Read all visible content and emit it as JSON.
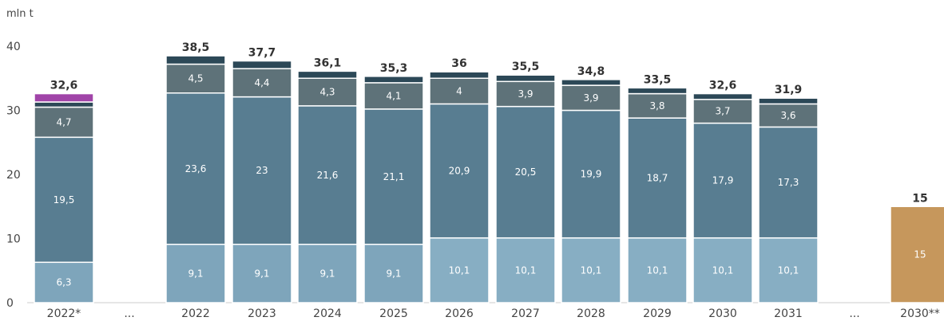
{
  "chart_data": {
    "type": "bar",
    "stacked": true,
    "unit_label": "mln t",
    "title": "",
    "xlabel": "",
    "ylabel": "",
    "ylim": [
      0,
      40
    ],
    "y_ticks": [
      0,
      10,
      20,
      30,
      40
    ],
    "grid": false,
    "categories": [
      "2022*",
      "...",
      "2022",
      "2023",
      "2024",
      "2025",
      "2026",
      "2027",
      "2028",
      "2029",
      "2030",
      "2031",
      "...",
      "2030**"
    ],
    "colors": {
      "s1": "#7ea5bb",
      "s1_alt": "#87aec3",
      "s2": "#587d91",
      "s3": "#5e7279",
      "s4": "#3f5866",
      "s5": "#2c4857",
      "highlight": "#a044a8",
      "target": "#c6975c"
    },
    "bars": [
      {
        "category": "2022*",
        "total": 32.6,
        "total_label": "32,6",
        "segments": [
          {
            "value": 6.3,
            "label": "6,3",
            "color": "#7ea5bb"
          },
          {
            "value": 19.5,
            "label": "19,5",
            "color": "#587d91"
          },
          {
            "value": 4.7,
            "label": "4,7",
            "color": "#5e7279"
          },
          {
            "value": 0.8,
            "label": "",
            "color": "#2c4857"
          },
          {
            "value": 1.3,
            "label": "",
            "color": "#a044a8"
          }
        ]
      },
      {
        "category": "2022",
        "total": 38.5,
        "total_label": "38,5",
        "segments": [
          {
            "value": 9.1,
            "label": "9,1",
            "color": "#7ea5bb"
          },
          {
            "value": 23.6,
            "label": "23,6",
            "color": "#587d91"
          },
          {
            "value": 4.5,
            "label": "4,5",
            "color": "#5e7279"
          },
          {
            "value": 1.3,
            "label": "",
            "color": "#2c4857"
          }
        ]
      },
      {
        "category": "2023",
        "total": 37.7,
        "total_label": "37,7",
        "segments": [
          {
            "value": 9.1,
            "label": "9,1",
            "color": "#7ea5bb"
          },
          {
            "value": 23,
            "label": "23",
            "color": "#587d91"
          },
          {
            "value": 4.4,
            "label": "4,4",
            "color": "#5e7279"
          },
          {
            "value": 1.2,
            "label": "",
            "color": "#2c4857"
          }
        ]
      },
      {
        "category": "2024",
        "total": 36.1,
        "total_label": "36,1",
        "segments": [
          {
            "value": 9.1,
            "label": "9,1",
            "color": "#7ea5bb"
          },
          {
            "value": 21.6,
            "label": "21,6",
            "color": "#587d91"
          },
          {
            "value": 4.3,
            "label": "4,3",
            "color": "#5e7279"
          },
          {
            "value": 1.1,
            "label": "",
            "color": "#2c4857"
          }
        ]
      },
      {
        "category": "2025",
        "total": 35.3,
        "total_label": "35,3",
        "segments": [
          {
            "value": 9.1,
            "label": "9,1",
            "color": "#7ea5bb"
          },
          {
            "value": 21.1,
            "label": "21,1",
            "color": "#587d91"
          },
          {
            "value": 4.1,
            "label": "4,1",
            "color": "#5e7279"
          },
          {
            "value": 1.0,
            "label": "",
            "color": "#2c4857"
          }
        ]
      },
      {
        "category": "2026",
        "total": 36,
        "total_label": "36",
        "segments": [
          {
            "value": 10.1,
            "label": "10,1",
            "color": "#87aec3"
          },
          {
            "value": 20.9,
            "label": "20,9",
            "color": "#587d91"
          },
          {
            "value": 4,
            "label": "4",
            "color": "#5e7279"
          },
          {
            "value": 1.0,
            "label": "",
            "color": "#2c4857"
          }
        ]
      },
      {
        "category": "2027",
        "total": 35.5,
        "total_label": "35,5",
        "segments": [
          {
            "value": 10.1,
            "label": "10,1",
            "color": "#87aec3"
          },
          {
            "value": 20.5,
            "label": "20,5",
            "color": "#587d91"
          },
          {
            "value": 3.9,
            "label": "3,9",
            "color": "#5e7279"
          },
          {
            "value": 1.0,
            "label": "",
            "color": "#2c4857"
          }
        ]
      },
      {
        "category": "2028",
        "total": 34.8,
        "total_label": "34,8",
        "segments": [
          {
            "value": 10.1,
            "label": "10,1",
            "color": "#87aec3"
          },
          {
            "value": 19.9,
            "label": "19,9",
            "color": "#587d91"
          },
          {
            "value": 3.9,
            "label": "3,9",
            "color": "#5e7279"
          },
          {
            "value": 0.9,
            "label": "",
            "color": "#2c4857"
          }
        ]
      },
      {
        "category": "2029",
        "total": 33.5,
        "total_label": "33,5",
        "segments": [
          {
            "value": 10.1,
            "label": "10,1",
            "color": "#87aec3"
          },
          {
            "value": 18.7,
            "label": "18,7",
            "color": "#587d91"
          },
          {
            "value": 3.8,
            "label": "3,8",
            "color": "#5e7279"
          },
          {
            "value": 0.9,
            "label": "",
            "color": "#2c4857"
          }
        ]
      },
      {
        "category": "2030",
        "total": 32.6,
        "total_label": "32,6",
        "segments": [
          {
            "value": 10.1,
            "label": "10,1",
            "color": "#87aec3"
          },
          {
            "value": 17.9,
            "label": "17,9",
            "color": "#587d91"
          },
          {
            "value": 3.7,
            "label": "3,7",
            "color": "#5e7279"
          },
          {
            "value": 0.9,
            "label": "",
            "color": "#2c4857"
          }
        ]
      },
      {
        "category": "2031",
        "total": 31.9,
        "total_label": "31,9",
        "segments": [
          {
            "value": 10.1,
            "label": "10,1",
            "color": "#87aec3"
          },
          {
            "value": 17.3,
            "label": "17,3",
            "color": "#587d91"
          },
          {
            "value": 3.6,
            "label": "3,6",
            "color": "#5e7279"
          },
          {
            "value": 0.9,
            "label": "",
            "color": "#2c4857"
          }
        ]
      },
      {
        "category": "2030**",
        "total": 15,
        "total_label": "15",
        "segments": [
          {
            "value": 15,
            "label": "15",
            "color": "#c6975c"
          }
        ]
      }
    ]
  }
}
